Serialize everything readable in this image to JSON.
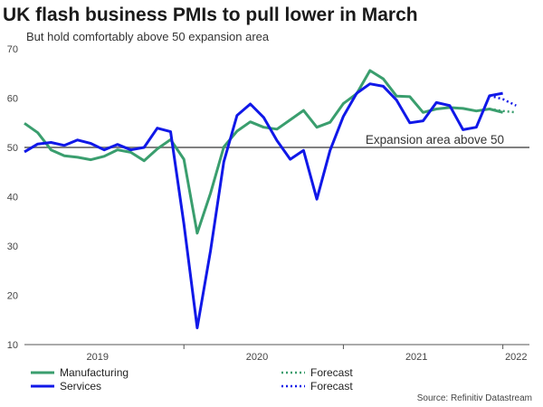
{
  "title": "UK flash business PMIs to pull lower in March",
  "subtitle": "But hold comfortably above 50 expansion area",
  "source": "Source: Refinitiv Datastream",
  "colors": {
    "manufacturing": "#3a9e6e",
    "services": "#1018e8",
    "reference": "#808080",
    "axis": "#555555"
  },
  "chart_data": {
    "type": "line",
    "title": "UK flash business PMIs to pull lower in March",
    "subtitle": "But hold comfortably above 50 expansion area",
    "xlabel": "",
    "ylabel": "",
    "ylim": [
      10,
      70
    ],
    "y_ticks": [
      10,
      20,
      30,
      40,
      50,
      60,
      70
    ],
    "x_tick_labels": [
      "2019",
      "2020",
      "2021",
      "2022"
    ],
    "x_range": [
      "2019-01",
      "2022-03"
    ],
    "grid": false,
    "legend_position": "bottom",
    "reference_line": {
      "value": 50,
      "label": "Expansion area above 50"
    },
    "x": [
      "2019-01",
      "2019-02",
      "2019-03",
      "2019-04",
      "2019-05",
      "2019-06",
      "2019-07",
      "2019-08",
      "2019-09",
      "2019-10",
      "2019-11",
      "2019-12",
      "2020-01",
      "2020-02",
      "2020-03",
      "2020-04",
      "2020-05",
      "2020-06",
      "2020-07",
      "2020-08",
      "2020-09",
      "2020-10",
      "2020-11",
      "2020-12",
      "2021-01",
      "2021-02",
      "2021-03",
      "2021-04",
      "2021-05",
      "2021-06",
      "2021-07",
      "2021-08",
      "2021-09",
      "2021-10",
      "2021-11",
      "2021-12",
      "2022-01",
      "2022-02",
      "2022-03"
    ],
    "series": [
      {
        "name": "Manufacturing",
        "style": "solid",
        "values": [
          54.9,
          53.0,
          49.5,
          48.3,
          48.0,
          47.5,
          48.2,
          49.5,
          49.0,
          47.3,
          49.7,
          51.6,
          47.6,
          32.6,
          40.7,
          50.1,
          53.3,
          55.2,
          54.1,
          53.7,
          55.6,
          57.5,
          54.1,
          55.1,
          58.9,
          60.9,
          65.6,
          63.9,
          60.4,
          60.3,
          57.1,
          57.8,
          58.1,
          57.9,
          57.4,
          57.8,
          57.1,
          null,
          null
        ]
      },
      {
        "name": "Services",
        "style": "solid",
        "values": [
          49.1,
          50.7,
          51.0,
          50.4,
          51.5,
          50.8,
          49.5,
          50.6,
          49.5,
          50.0,
          53.9,
          53.2,
          34.5,
          13.4,
          29.0,
          47.1,
          56.5,
          58.8,
          56.1,
          51.4,
          47.6,
          49.4,
          39.5,
          49.4,
          56.3,
          61.0,
          62.9,
          62.4,
          59.6,
          55.0,
          55.4,
          59.1,
          58.5,
          53.6,
          54.1,
          60.5,
          61.0,
          null,
          null
        ]
      },
      {
        "name": "Forecast",
        "style": "dotted",
        "values": [
          null,
          null,
          null,
          null,
          null,
          null,
          null,
          null,
          null,
          null,
          null,
          null,
          null,
          null,
          null,
          null,
          null,
          null,
          null,
          null,
          null,
          null,
          null,
          null,
          null,
          null,
          null,
          null,
          null,
          null,
          null,
          null,
          null,
          null,
          null,
          57.8,
          57.4,
          57.1,
          null
        ]
      },
      {
        "name": "Forecast",
        "style": "dotted",
        "values": [
          null,
          null,
          null,
          null,
          null,
          null,
          null,
          null,
          null,
          null,
          null,
          null,
          null,
          null,
          null,
          null,
          null,
          null,
          null,
          null,
          null,
          null,
          null,
          null,
          null,
          null,
          null,
          null,
          null,
          null,
          null,
          null,
          null,
          null,
          null,
          60.5,
          59.8,
          58.5,
          null
        ]
      }
    ]
  }
}
